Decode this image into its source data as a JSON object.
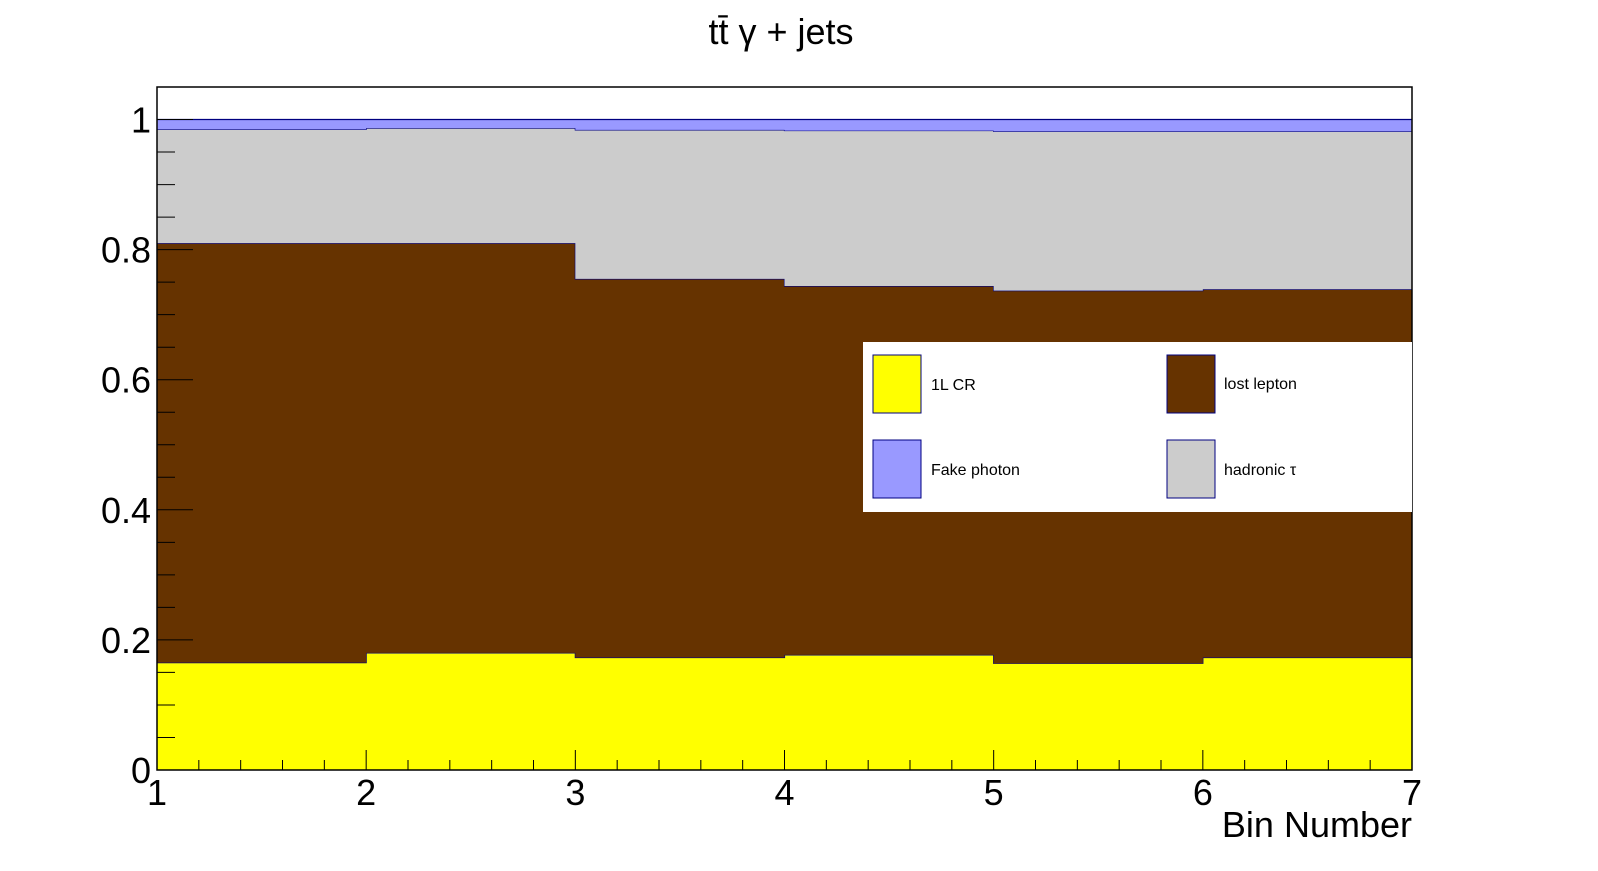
{
  "chart_data": {
    "type": "area",
    "stacked": true,
    "step": true,
    "title": "tt̄ γ + jets",
    "xlabel": "Bin Number",
    "ylabel": "",
    "xlim": [
      1,
      7
    ],
    "ylim": [
      0,
      1.05
    ],
    "x_bin_edges": [
      1,
      2,
      3,
      4,
      5,
      6,
      7
    ],
    "x_ticks": [
      "1",
      "2",
      "3",
      "4",
      "5",
      "6",
      "7"
    ],
    "y_ticks": [
      "0",
      "0.2",
      "0.4",
      "0.6",
      "0.8",
      "1"
    ],
    "y_tick_values": [
      0,
      0.2,
      0.4,
      0.6,
      0.8,
      1.0
    ],
    "legend_position": "right",
    "series": [
      {
        "name": "1L CR",
        "color": "#ffff00",
        "values": [
          0.165,
          0.18,
          0.173,
          0.177,
          0.164,
          0.173
        ]
      },
      {
        "name": "lost lepton",
        "color": "#663300",
        "values": [
          0.645,
          0.63,
          0.582,
          0.567,
          0.573,
          0.566
        ]
      },
      {
        "name": "hadronic τ",
        "color": "#cccccc",
        "values": [
          0.175,
          0.177,
          0.229,
          0.239,
          0.245,
          0.243
        ]
      },
      {
        "name": "Fake photon",
        "color": "#9999ff",
        "values": [
          0.015,
          0.013,
          0.016,
          0.017,
          0.018,
          0.018
        ]
      }
    ],
    "legend_entries": [
      {
        "label": "1L CR",
        "color": "#ffff00"
      },
      {
        "label": "lost lepton",
        "color": "#663300"
      },
      {
        "label": "Fake photon",
        "color": "#9999ff"
      },
      {
        "label": "hadronic τ",
        "color": "#cccccc"
      }
    ]
  }
}
